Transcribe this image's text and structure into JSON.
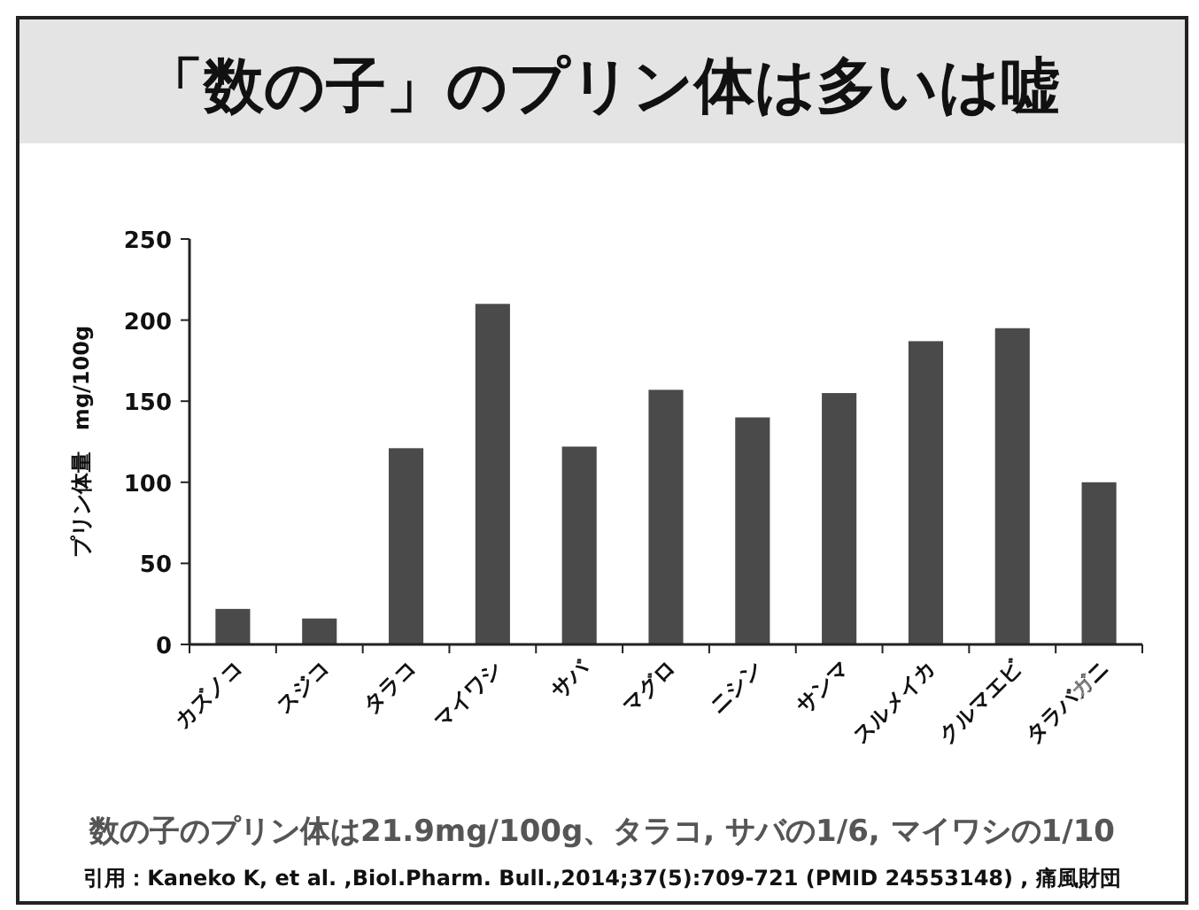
{
  "chart_data": {
    "type": "bar",
    "title": "「数の子」のプリン体は多いは嘘",
    "ylabel": "プリン体量　mg/100g",
    "categories": [
      "カズノコ",
      "スジコ",
      "タラコ",
      "マイワシ",
      "サバ",
      "マグロ",
      "ニシン",
      "サンマ",
      "スルメイカ",
      "クルマエビ",
      "タラバガニ"
    ],
    "values": [
      21.9,
      16,
      121,
      210,
      122,
      157,
      140,
      155,
      187,
      195,
      100
    ],
    "color": "#4a4a4a",
    "ylim": [
      0,
      250
    ],
    "yticks": [
      0,
      50,
      100,
      150,
      200,
      250
    ],
    "annotations": [
      "数の子のプリン体は21.9mg/100g、タラコ, サバの1/6, マイワシの1/10",
      "引用：Kaneko K, et al. ,Biol.Pharm. Bull.,2014;37(5):709-721 (PMID 24553148) , 痛風財団"
    ]
  }
}
